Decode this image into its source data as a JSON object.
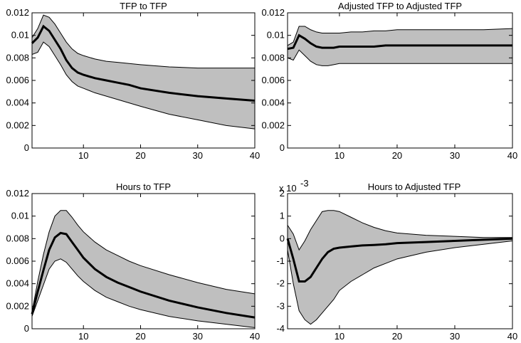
{
  "chart_data": [
    {
      "type": "line",
      "title": "TFP to TFP",
      "x": [
        1,
        2,
        3,
        4,
        5,
        6,
        7,
        8,
        9,
        10,
        12,
        14,
        16,
        18,
        20,
        25,
        30,
        35,
        40
      ],
      "values": [
        0.0093,
        0.0098,
        0.0108,
        0.0104,
        0.0096,
        0.0088,
        0.0078,
        0.0071,
        0.0067,
        0.0065,
        0.0062,
        0.006,
        0.0058,
        0.0056,
        0.0053,
        0.0049,
        0.0046,
        0.0044,
        0.0042
      ],
      "upper": [
        0.0098,
        0.0106,
        0.0118,
        0.0116,
        0.011,
        0.0102,
        0.0094,
        0.0088,
        0.0084,
        0.0082,
        0.0079,
        0.0077,
        0.0076,
        0.0075,
        0.0074,
        0.0072,
        0.0071,
        0.0071,
        0.0071
      ],
      "lower": [
        0.0083,
        0.0085,
        0.0094,
        0.009,
        0.0082,
        0.0074,
        0.0065,
        0.0059,
        0.0055,
        0.0053,
        0.0049,
        0.0046,
        0.0043,
        0.004,
        0.0037,
        0.003,
        0.0025,
        0.002,
        0.0017
      ],
      "color": "#000000",
      "band_color": "#bfbfbf",
      "xlim": [
        1,
        40
      ],
      "xticks": [
        10,
        20,
        30,
        40
      ],
      "ylim": [
        0,
        0.012
      ],
      "yticks": [
        0,
        0.002,
        0.004,
        0.006,
        0.008,
        0.01,
        0.012
      ]
    },
    {
      "type": "line",
      "title": "Adjusted TFP to Adjusted TFP",
      "x": [
        1,
        2,
        3,
        4,
        5,
        6,
        7,
        8,
        9,
        10,
        12,
        14,
        16,
        18,
        20,
        25,
        30,
        35,
        40
      ],
      "values": [
        0.0088,
        0.0089,
        0.01,
        0.0097,
        0.0093,
        0.009,
        0.0089,
        0.0089,
        0.0089,
        0.009,
        0.009,
        0.009,
        0.009,
        0.0091,
        0.0091,
        0.0091,
        0.0091,
        0.0091,
        0.0091
      ],
      "upper": [
        0.0091,
        0.0094,
        0.0108,
        0.0108,
        0.0105,
        0.0103,
        0.0102,
        0.0102,
        0.0102,
        0.0102,
        0.0103,
        0.0103,
        0.0104,
        0.0104,
        0.0105,
        0.0105,
        0.0105,
        0.0105,
        0.0106
      ],
      "lower": [
        0.008,
        0.0078,
        0.0087,
        0.0082,
        0.0077,
        0.0074,
        0.0073,
        0.0073,
        0.0074,
        0.0075,
        0.0075,
        0.0075,
        0.0075,
        0.0075,
        0.0075,
        0.0075,
        0.0075,
        0.0075,
        0.0075
      ],
      "color": "#000000",
      "band_color": "#bfbfbf",
      "xlim": [
        1,
        40
      ],
      "xticks": [
        10,
        20,
        30,
        40
      ],
      "ylim": [
        0,
        0.012
      ],
      "yticks": [
        0,
        0.002,
        0.004,
        0.006,
        0.008,
        0.01,
        0.012
      ]
    },
    {
      "type": "line",
      "title": "Hours to TFP",
      "x": [
        1,
        2,
        3,
        4,
        5,
        6,
        7,
        8,
        9,
        10,
        12,
        14,
        16,
        18,
        20,
        25,
        30,
        35,
        40
      ],
      "values": [
        0.0013,
        0.0033,
        0.0052,
        0.007,
        0.0081,
        0.0085,
        0.0084,
        0.0077,
        0.007,
        0.0063,
        0.0053,
        0.0046,
        0.0041,
        0.0037,
        0.0033,
        0.0025,
        0.0019,
        0.0014,
        0.001
      ],
      "upper": [
        0.0015,
        0.0042,
        0.0066,
        0.0086,
        0.01,
        0.0105,
        0.0105,
        0.0099,
        0.0092,
        0.0086,
        0.0077,
        0.007,
        0.0065,
        0.006,
        0.0056,
        0.0048,
        0.0041,
        0.0035,
        0.0031
      ],
      "lower": [
        0.0011,
        0.0025,
        0.0039,
        0.0053,
        0.006,
        0.0062,
        0.0059,
        0.0053,
        0.0047,
        0.0042,
        0.0034,
        0.0028,
        0.0024,
        0.002,
        0.0017,
        0.0011,
        0.0007,
        0.0004,
        0.0001
      ],
      "color": "#000000",
      "band_color": "#bfbfbf",
      "xlim": [
        1,
        40
      ],
      "xticks": [
        10,
        20,
        30,
        40
      ],
      "ylim": [
        0,
        0.012
      ],
      "yticks": [
        0,
        0.002,
        0.004,
        0.006,
        0.008,
        0.01,
        0.012
      ]
    },
    {
      "type": "line",
      "title": "Hours to Adjusted TFP",
      "y_scale_label": {
        "base": "x 10",
        "exponent": "-3"
      },
      "x": [
        1,
        2,
        3,
        4,
        5,
        6,
        7,
        8,
        9,
        10,
        12,
        14,
        16,
        18,
        20,
        25,
        30,
        35,
        40
      ],
      "values": [
        0,
        -0.9,
        -1.9,
        -1.9,
        -1.7,
        -1.3,
        -0.9,
        -0.6,
        -0.45,
        -0.4,
        -0.35,
        -0.3,
        -0.28,
        -0.25,
        -0.2,
        -0.15,
        -0.1,
        -0.05,
        0
      ],
      "upper": [
        0.6,
        0.2,
        -0.5,
        -0.1,
        0.4,
        0.8,
        1.2,
        1.25,
        1.25,
        1.2,
        0.95,
        0.7,
        0.5,
        0.35,
        0.25,
        0.15,
        0.1,
        0.05,
        0.05
      ],
      "lower": [
        -0.5,
        -2,
        -3.2,
        -3.6,
        -3.8,
        -3.6,
        -3.3,
        -3,
        -2.7,
        -2.3,
        -1.9,
        -1.6,
        -1.3,
        -1.1,
        -0.9,
        -0.6,
        -0.4,
        -0.25,
        -0.1
      ],
      "color": "#000000",
      "band_color": "#bfbfbf",
      "xlim": [
        1,
        40
      ],
      "xticks": [
        10,
        20,
        30,
        40
      ],
      "ylim": [
        -4,
        2
      ],
      "yticks": [
        -4,
        -3,
        -2,
        -1,
        0,
        1,
        2
      ]
    }
  ]
}
